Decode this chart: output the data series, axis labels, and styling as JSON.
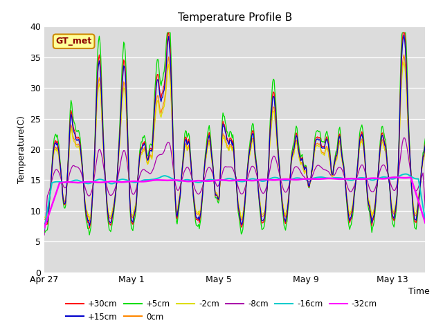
{
  "title": "Temperature Profile B",
  "xlabel": "Time",
  "ylabel": "Temperature(C)",
  "ylim": [
    0,
    40
  ],
  "yticks": [
    0,
    5,
    10,
    15,
    20,
    25,
    30,
    35,
    40
  ],
  "bg_color": "#dcdcdc",
  "annotation_text": "GT_met",
  "annotation_bg": "#ffff99",
  "annotation_border": "#cc8800",
  "series_colors": {
    "+30cm": "#ff0000",
    "+15cm": "#0000cc",
    "+5cm": "#00dd00",
    "0cm": "#ff8800",
    "-2cm": "#dddd00",
    "-8cm": "#aa00aa",
    "-16cm": "#00cccc",
    "-32cm": "#ff00ff"
  },
  "legend_order": [
    "+30cm",
    "+15cm",
    "+5cm",
    "0cm",
    "-2cm",
    "-8cm",
    "-16cm",
    "-32cm"
  ],
  "date_labels": [
    "Apr 27",
    "May 1",
    "May 5",
    "May 9",
    "May 13"
  ],
  "date_label_days": [
    0,
    4,
    8,
    12,
    16
  ],
  "n_points": 500,
  "total_days": 17.5
}
